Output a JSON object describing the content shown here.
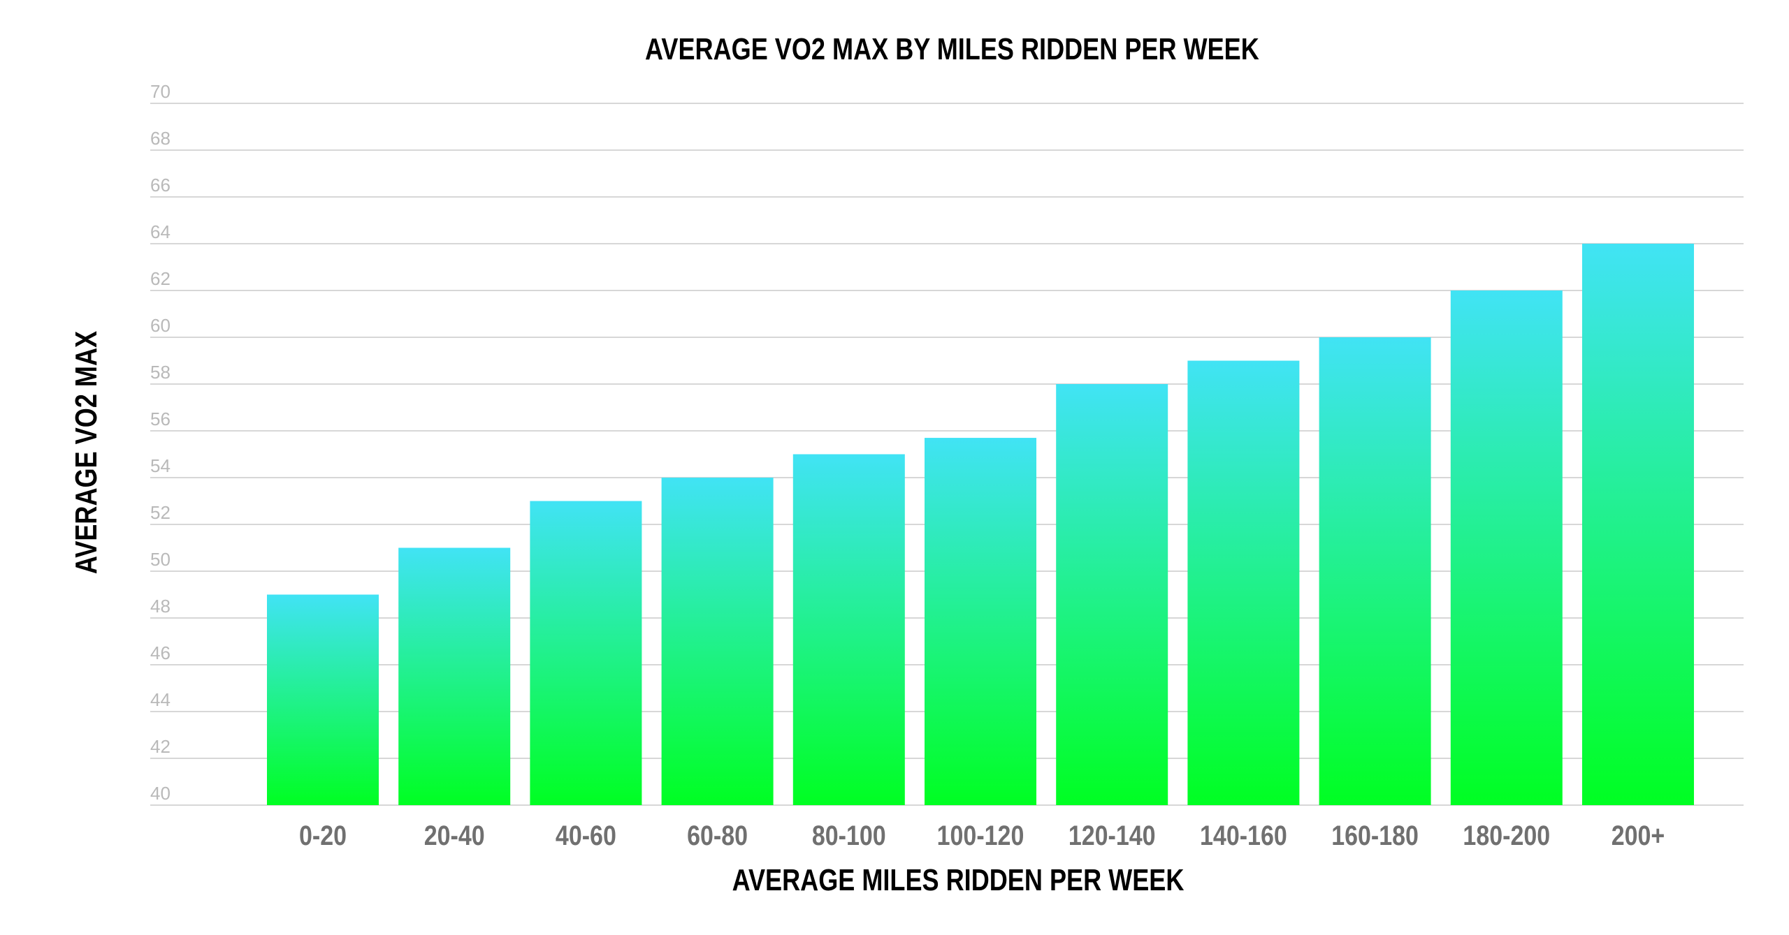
{
  "chart_data": {
    "type": "bar",
    "title": "AVERAGE VO2 MAX BY MILES RIDDEN PER WEEK",
    "xlabel": "AVERAGE MILES RIDDEN PER WEEK",
    "ylabel": "AVERAGE VO2 MAX",
    "categories": [
      "0-20",
      "20-40",
      "40-60",
      "60-80",
      "80-100",
      "100-120",
      "120-140",
      "140-160",
      "160-180",
      "180-200",
      "200+"
    ],
    "values": [
      49,
      51,
      53,
      54,
      55,
      55.7,
      58,
      59,
      60,
      62,
      64
    ],
    "ylim": [
      40,
      70
    ],
    "yticks": [
      40,
      42,
      44,
      46,
      48,
      50,
      52,
      54,
      56,
      58,
      60,
      62,
      64,
      66,
      68,
      70
    ],
    "grid": true,
    "legend": "none",
    "colors": {
      "bar_top": "#41e3f5",
      "bar_bottom": "#00ff22",
      "grid": "#d7d7d7",
      "y_tick_text": "#b9b9b9",
      "x_tick_text": "#707070",
      "title_text": "#000000"
    }
  }
}
